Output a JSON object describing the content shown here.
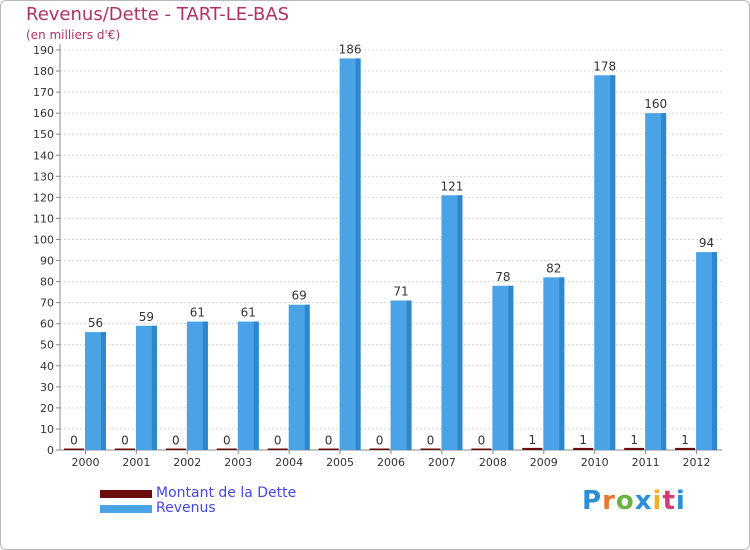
{
  "header": {
    "title": "Revenus/Dette - TART-LE-BAS",
    "subtitle": "(en milliers d'€)"
  },
  "chart_data": {
    "type": "bar",
    "title": "Revenus/Dette - TART-LE-BAS",
    "subtitle": "(en milliers d'€)",
    "xlabel": "",
    "ylabel": "",
    "ylim": [
      0,
      190
    ],
    "yticks": [
      0,
      10,
      20,
      30,
      40,
      50,
      60,
      70,
      80,
      90,
      100,
      110,
      120,
      130,
      140,
      150,
      160,
      170,
      180,
      190
    ],
    "grid": true,
    "legend_position": "bottom-left",
    "categories": [
      "2000",
      "2001",
      "2002",
      "2003",
      "2004",
      "2005",
      "2006",
      "2007",
      "2008",
      "2009",
      "2010",
      "2011",
      "2012"
    ],
    "series": [
      {
        "name": "Montant de la Dette",
        "color": "#6b0d0d",
        "values": [
          0,
          0,
          0,
          0,
          0,
          0,
          0,
          0,
          0,
          1,
          1,
          1,
          1
        ]
      },
      {
        "name": "Revenus",
        "color": "#4aa3e6",
        "values": [
          56,
          59,
          61,
          61,
          69,
          186,
          71,
          121,
          78,
          82,
          178,
          160,
          94
        ]
      }
    ]
  },
  "legend": {
    "items": [
      {
        "label": "Montant de la Dette",
        "color": "#6b0d0d"
      },
      {
        "label": "Revenus",
        "color": "#4aa3e6"
      }
    ]
  },
  "logo": {
    "letters": [
      "P",
      "r",
      "o",
      "x",
      "i",
      "t",
      "i"
    ],
    "colors": [
      "#2a8fd6",
      "#e8782a",
      "#6db33f",
      "#2a8fd6",
      "#e8b52a",
      "#d23a7a",
      "#2a8fd6"
    ]
  }
}
